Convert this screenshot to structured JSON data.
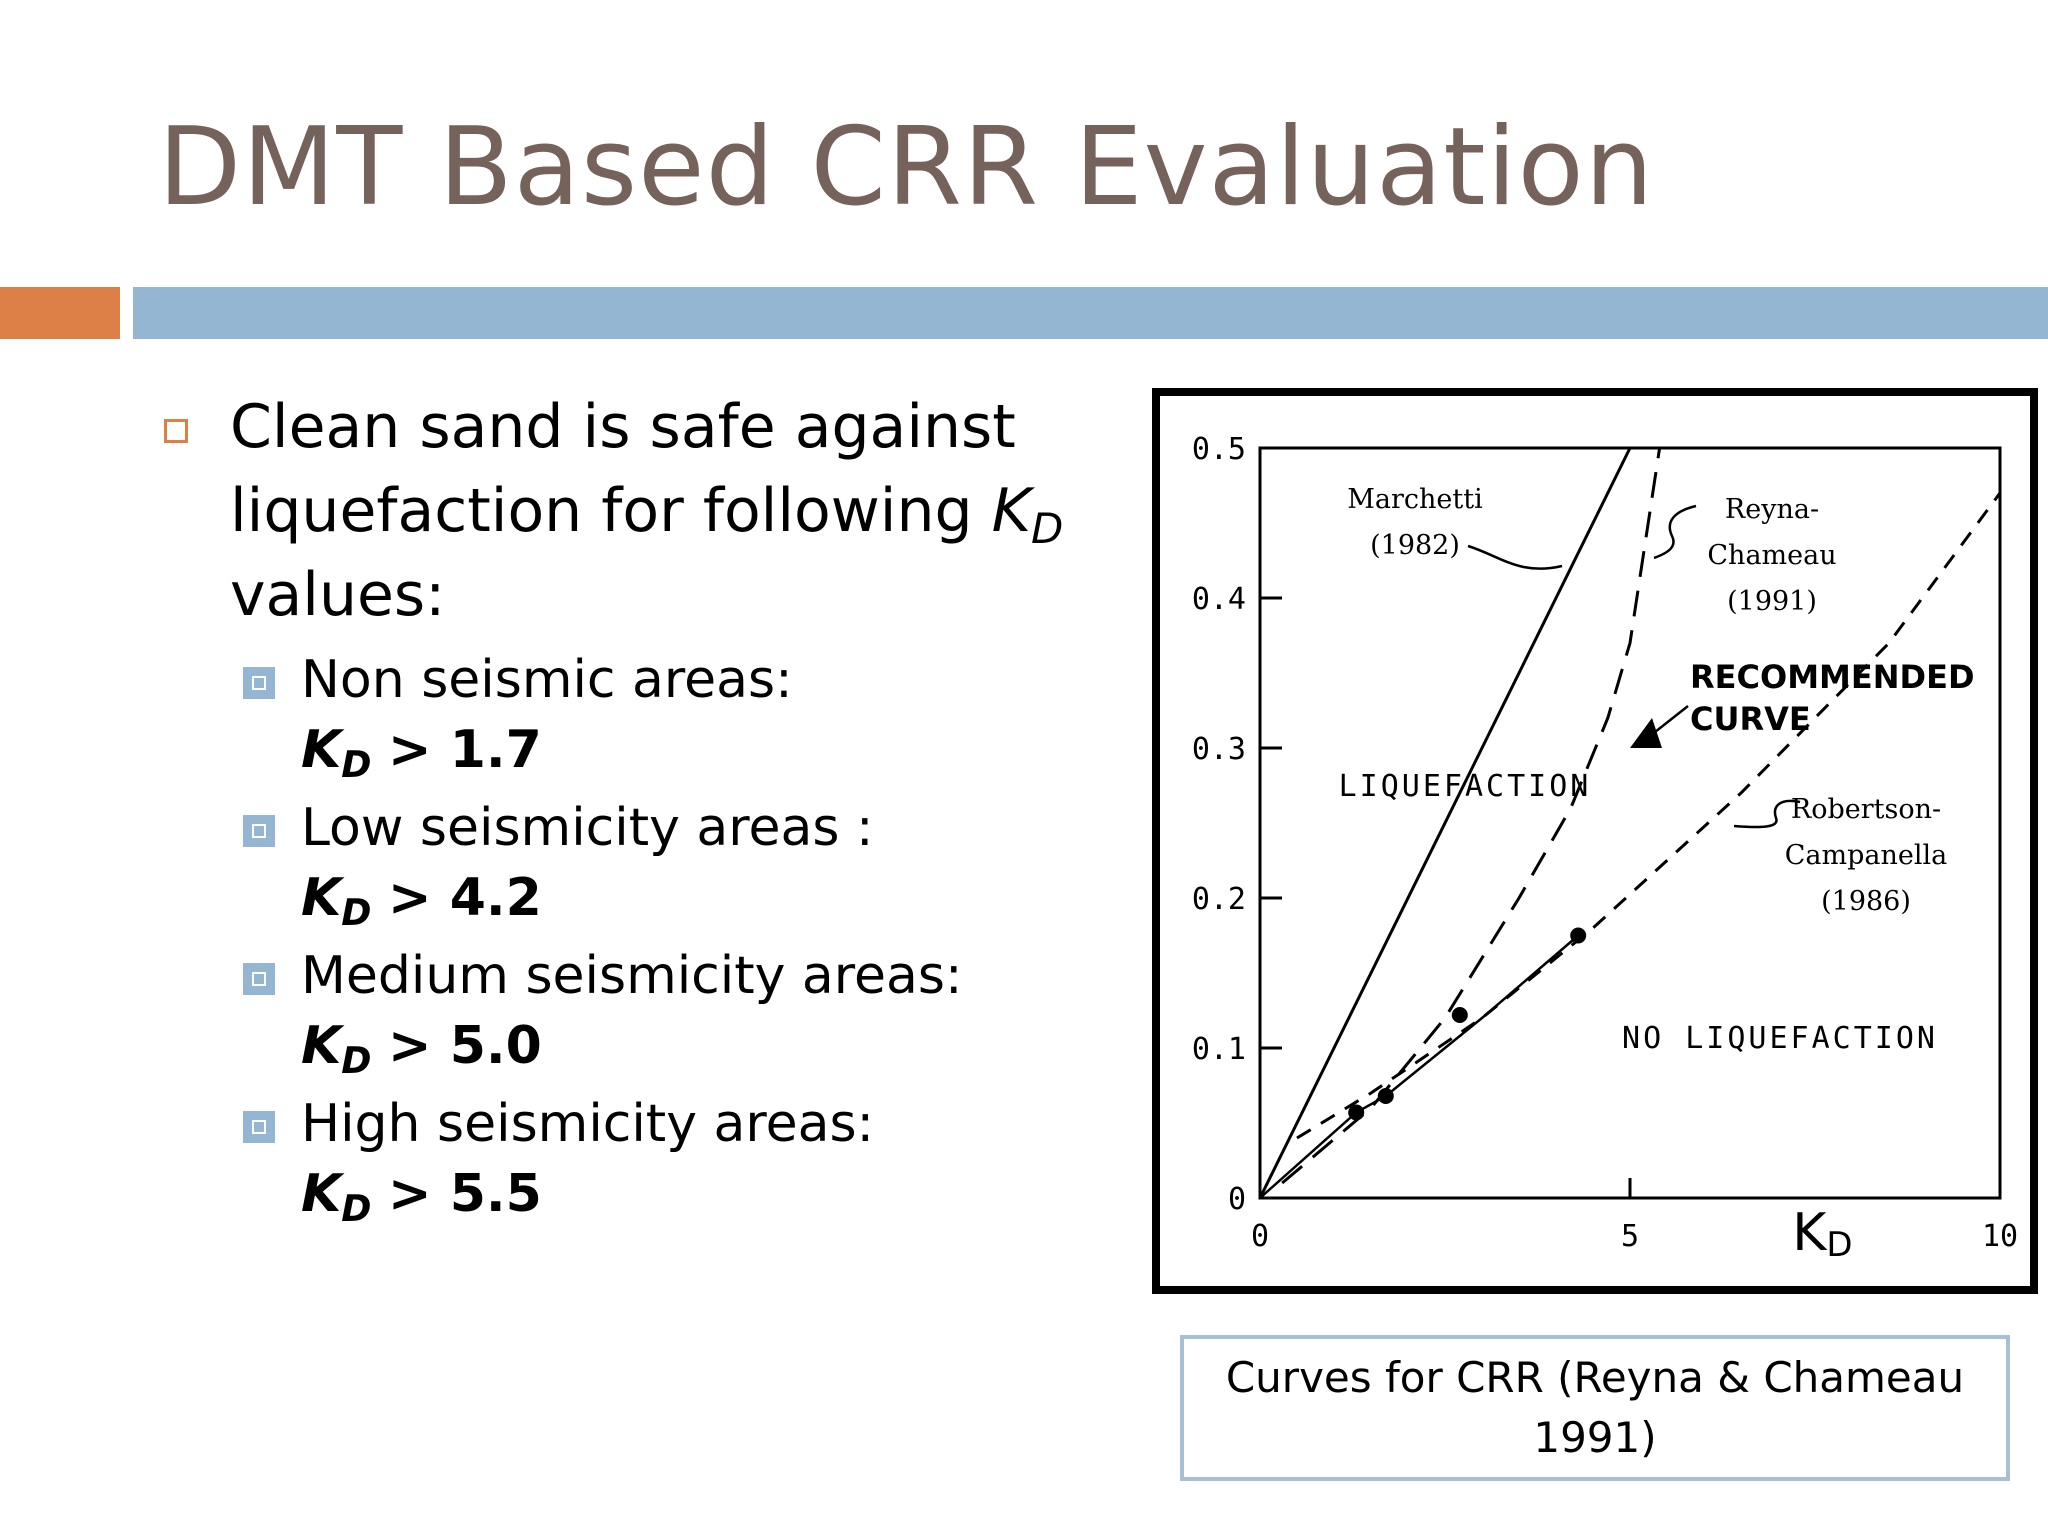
{
  "slide": {
    "title": "DMT Based CRR Evaluation",
    "accent_colors": {
      "title": "#75625A",
      "orange": "#DD8047",
      "blue": "#94B6D2"
    }
  },
  "bullets": {
    "main_text": "Clean sand is safe against liquefaction for following",
    "main_symbol": "K",
    "main_subscript": "D",
    "main_tail": "values:",
    "items": [
      {
        "label": "Non seismic areas:",
        "symbol": "K",
        "subscript": "D",
        "condition": "> 1.7"
      },
      {
        "label": "Low seismicity areas :",
        "symbol": "K",
        "subscript": "D",
        "condition": "> 4.2"
      },
      {
        "label": "Medium seismicity areas:",
        "symbol": "K",
        "subscript": "D",
        "condition": "> 5.0"
      },
      {
        "label": "High seismicity areas:",
        "symbol": "K",
        "subscript": "D",
        "condition": "> 5.5"
      }
    ]
  },
  "chart_data": {
    "type": "line",
    "xlabel": "KD",
    "xlim": [
      0,
      10
    ],
    "ylim": [
      0,
      0.5
    ],
    "x_ticks": [
      "0",
      "5",
      "10"
    ],
    "y_ticks": [
      "0",
      "0.1",
      "0.2",
      "0.3",
      "0.4",
      "0.5"
    ],
    "grid": false,
    "regions": [
      "LIQUEFACTION",
      "NO LIQUEFACTION"
    ],
    "series": [
      {
        "name": "Marchetti (1982)",
        "style": "solid",
        "x": [
          0,
          5.0
        ],
        "y": [
          0,
          0.5
        ]
      },
      {
        "name": "Reyna-Chameau (1991)",
        "style": "dashed",
        "x": [
          0.3,
          1.5,
          2.5,
          3.5,
          4.2,
          4.7,
          5.0,
          5.4
        ],
        "y": [
          0.01,
          0.06,
          0.12,
          0.2,
          0.26,
          0.32,
          0.37,
          0.5
        ]
      },
      {
        "name": "Robertson-Campanella (1986)",
        "style": "dashed",
        "x": [
          0.5,
          1.5,
          3.0,
          4.5,
          6.5,
          8.5,
          10
        ],
        "y": [
          0.04,
          0.07,
          0.12,
          0.18,
          0.27,
          0.37,
          0.47
        ]
      },
      {
        "name": "RECOMMENDED CURVE",
        "style": "solid",
        "x": [
          0,
          1.3,
          1.7,
          3.0,
          4.3
        ],
        "y": [
          0,
          0.057,
          0.068,
          0.12,
          0.175
        ]
      }
    ],
    "points": {
      "x": [
        1.3,
        1.7,
        2.7,
        4.3
      ],
      "y": [
        0.057,
        0.068,
        0.122,
        0.175
      ]
    },
    "annotations": {
      "marchetti": [
        "Marchetti",
        "(1982)"
      ],
      "reyna": [
        "Reyna-",
        "Chameau",
        "(1991)"
      ],
      "recommended": [
        "RECOMMENDED",
        "CURVE"
      ],
      "robertson": [
        "Robertson-",
        "Campanella",
        "(1986)"
      ]
    }
  },
  "caption": "Curves for CRR (Reyna & Chameau 1991)"
}
